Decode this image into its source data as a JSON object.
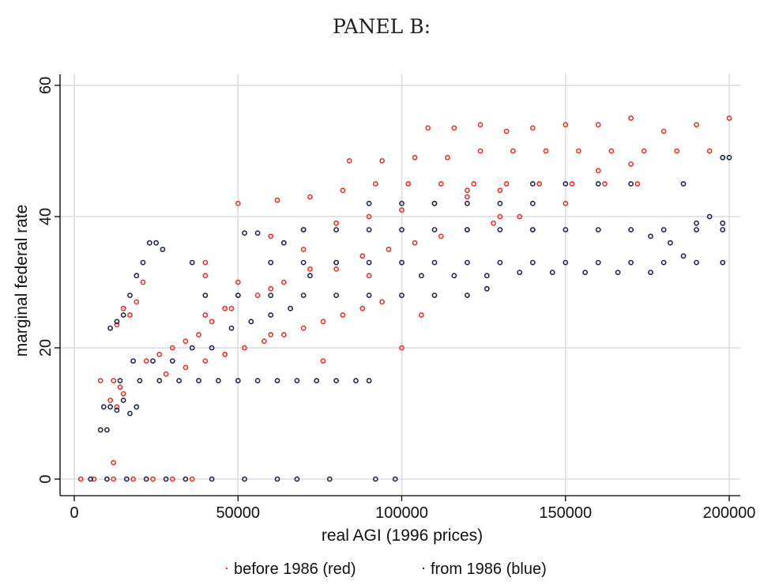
{
  "chart_data": {
    "type": "scatter",
    "title": "PANEL B:",
    "xlabel": "real AGI (1996 prices)",
    "ylabel": "marginal federal rate",
    "xlim": [
      0,
      200000
    ],
    "ylim": [
      0,
      60
    ],
    "x_ticks": [
      "0",
      "50000",
      "100000",
      "150000",
      "200000"
    ],
    "y_ticks": [
      "0",
      "20",
      "40",
      "60"
    ],
    "grid": true,
    "legend_position": "bottom",
    "series": [
      {
        "name": "before 1986 (red)",
        "color": "#e8342c",
        "points": [
          [
            2000,
            0
          ],
          [
            6000,
            0
          ],
          [
            12000,
            0
          ],
          [
            18000,
            0
          ],
          [
            24000,
            0
          ],
          [
            30000,
            0
          ],
          [
            36000,
            0
          ],
          [
            8000,
            15
          ],
          [
            12000,
            15
          ],
          [
            14000,
            14
          ],
          [
            11000,
            12
          ],
          [
            13000,
            11
          ],
          [
            15000,
            13
          ],
          [
            13000,
            23.5
          ],
          [
            15000,
            26
          ],
          [
            17000,
            25
          ],
          [
            19000,
            27
          ],
          [
            21000,
            30
          ],
          [
            22000,
            18
          ],
          [
            26000,
            19
          ],
          [
            30000,
            20
          ],
          [
            34000,
            21
          ],
          [
            38000,
            22
          ],
          [
            42000,
            24
          ],
          [
            46000,
            26
          ],
          [
            50000,
            28
          ],
          [
            28000,
            16
          ],
          [
            34000,
            17
          ],
          [
            40000,
            18
          ],
          [
            46000,
            19
          ],
          [
            52000,
            20
          ],
          [
            58000,
            21
          ],
          [
            64000,
            22
          ],
          [
            70000,
            23
          ],
          [
            76000,
            24
          ],
          [
            82000,
            25
          ],
          [
            88000,
            26
          ],
          [
            94000,
            27
          ],
          [
            40000,
            25
          ],
          [
            48000,
            26
          ],
          [
            56000,
            28
          ],
          [
            64000,
            30
          ],
          [
            72000,
            32
          ],
          [
            80000,
            33
          ],
          [
            88000,
            34
          ],
          [
            96000,
            35
          ],
          [
            104000,
            36
          ],
          [
            112000,
            37
          ],
          [
            120000,
            38
          ],
          [
            128000,
            39
          ],
          [
            136000,
            40
          ],
          [
            50000,
            42
          ],
          [
            60000,
            37
          ],
          [
            70000,
            38
          ],
          [
            80000,
            39
          ],
          [
            90000,
            40
          ],
          [
            100000,
            41
          ],
          [
            110000,
            42
          ],
          [
            120000,
            43
          ],
          [
            130000,
            44
          ],
          [
            62000,
            42.5
          ],
          [
            72000,
            43
          ],
          [
            82000,
            44
          ],
          [
            92000,
            45
          ],
          [
            102000,
            45
          ],
          [
            112000,
            45
          ],
          [
            122000,
            45
          ],
          [
            132000,
            45
          ],
          [
            142000,
            45
          ],
          [
            152000,
            45
          ],
          [
            162000,
            45
          ],
          [
            172000,
            45
          ],
          [
            84000,
            48.5
          ],
          [
            94000,
            48.5
          ],
          [
            104000,
            49
          ],
          [
            114000,
            49
          ],
          [
            124000,
            50
          ],
          [
            134000,
            50
          ],
          [
            144000,
            50
          ],
          [
            154000,
            50
          ],
          [
            164000,
            50
          ],
          [
            174000,
            50
          ],
          [
            184000,
            50
          ],
          [
            194000,
            50
          ],
          [
            108000,
            53.5
          ],
          [
            116000,
            53.5
          ],
          [
            124000,
            54
          ],
          [
            132000,
            53
          ],
          [
            140000,
            53.5
          ],
          [
            150000,
            54
          ],
          [
            160000,
            54
          ],
          [
            170000,
            55
          ],
          [
            180000,
            53
          ],
          [
            190000,
            54
          ],
          [
            200000,
            55
          ],
          [
            120000,
            44
          ],
          [
            130000,
            40
          ],
          [
            140000,
            38
          ],
          [
            150000,
            42
          ],
          [
            160000,
            47
          ],
          [
            170000,
            48
          ],
          [
            40000,
            31
          ],
          [
            50000,
            30
          ],
          [
            60000,
            29
          ],
          [
            70000,
            35
          ],
          [
            80000,
            32
          ],
          [
            90000,
            31
          ],
          [
            100000,
            20
          ],
          [
            106000,
            25
          ],
          [
            12000,
            2.5
          ],
          [
            40000,
            33
          ],
          [
            60000,
            22
          ],
          [
            76000,
            18
          ]
        ]
      },
      {
        "name": "from 1986 (blue)",
        "color": "#22294f",
        "points": [
          [
            5000,
            0
          ],
          [
            10000,
            0
          ],
          [
            16000,
            0
          ],
          [
            22000,
            0
          ],
          [
            28000,
            0
          ],
          [
            34000,
            0
          ],
          [
            42000,
            0
          ],
          [
            52000,
            0
          ],
          [
            62000,
            0
          ],
          [
            68000,
            0
          ],
          [
            78000,
            0
          ],
          [
            92000,
            0
          ],
          [
            98000,
            0
          ],
          [
            8000,
            7.5
          ],
          [
            10000,
            7.5
          ],
          [
            9000,
            11
          ],
          [
            11000,
            11
          ],
          [
            13000,
            10.5
          ],
          [
            15000,
            12
          ],
          [
            17000,
            10
          ],
          [
            19000,
            11
          ],
          [
            11000,
            23
          ],
          [
            13000,
            24
          ],
          [
            15000,
            25
          ],
          [
            17000,
            28
          ],
          [
            19000,
            31
          ],
          [
            21000,
            33
          ],
          [
            23000,
            36
          ],
          [
            25000,
            36
          ],
          [
            27000,
            35
          ],
          [
            14000,
            15
          ],
          [
            20000,
            15
          ],
          [
            26000,
            15
          ],
          [
            32000,
            15
          ],
          [
            38000,
            15
          ],
          [
            44000,
            15
          ],
          [
            50000,
            15
          ],
          [
            56000,
            15
          ],
          [
            62000,
            15
          ],
          [
            68000,
            15
          ],
          [
            74000,
            15
          ],
          [
            80000,
            15
          ],
          [
            86000,
            15
          ],
          [
            90000,
            15
          ],
          [
            18000,
            18
          ],
          [
            24000,
            18
          ],
          [
            30000,
            18
          ],
          [
            36000,
            20
          ],
          [
            42000,
            20
          ],
          [
            48000,
            23
          ],
          [
            54000,
            24
          ],
          [
            60000,
            25
          ],
          [
            66000,
            26
          ],
          [
            40000,
            28
          ],
          [
            50000,
            28
          ],
          [
            60000,
            28
          ],
          [
            70000,
            28
          ],
          [
            80000,
            28
          ],
          [
            90000,
            28
          ],
          [
            100000,
            28
          ],
          [
            110000,
            28
          ],
          [
            120000,
            28
          ],
          [
            126000,
            29
          ],
          [
            60000,
            33
          ],
          [
            70000,
            33
          ],
          [
            80000,
            33
          ],
          [
            90000,
            33
          ],
          [
            100000,
            33
          ],
          [
            110000,
            33
          ],
          [
            120000,
            33
          ],
          [
            130000,
            33
          ],
          [
            140000,
            33
          ],
          [
            150000,
            33
          ],
          [
            160000,
            33
          ],
          [
            170000,
            33
          ],
          [
            180000,
            33
          ],
          [
            190000,
            33
          ],
          [
            198000,
            33
          ],
          [
            106000,
            31
          ],
          [
            116000,
            31
          ],
          [
            126000,
            31
          ],
          [
            136000,
            31.5
          ],
          [
            146000,
            31.5
          ],
          [
            156000,
            31.5
          ],
          [
            166000,
            31.5
          ],
          [
            176000,
            31.5
          ],
          [
            70000,
            38
          ],
          [
            80000,
            38
          ],
          [
            90000,
            38
          ],
          [
            100000,
            38
          ],
          [
            110000,
            38
          ],
          [
            120000,
            38
          ],
          [
            130000,
            38
          ],
          [
            140000,
            38
          ],
          [
            150000,
            38
          ],
          [
            160000,
            38
          ],
          [
            170000,
            38
          ],
          [
            180000,
            38
          ],
          [
            190000,
            38
          ],
          [
            198000,
            38
          ],
          [
            90000,
            42
          ],
          [
            100000,
            42
          ],
          [
            110000,
            42
          ],
          [
            120000,
            42
          ],
          [
            130000,
            42
          ],
          [
            140000,
            42
          ],
          [
            140000,
            45
          ],
          [
            150000,
            45
          ],
          [
            160000,
            45
          ],
          [
            170000,
            45
          ],
          [
            186000,
            45
          ],
          [
            176000,
            37
          ],
          [
            182000,
            36
          ],
          [
            186000,
            34
          ],
          [
            190000,
            39
          ],
          [
            194000,
            40
          ],
          [
            198000,
            39
          ],
          [
            198000,
            49
          ],
          [
            200000,
            49
          ],
          [
            52000,
            37.5
          ],
          [
            56000,
            37.5
          ],
          [
            36000,
            33
          ],
          [
            64000,
            36
          ],
          [
            72000,
            31
          ]
        ]
      }
    ]
  }
}
